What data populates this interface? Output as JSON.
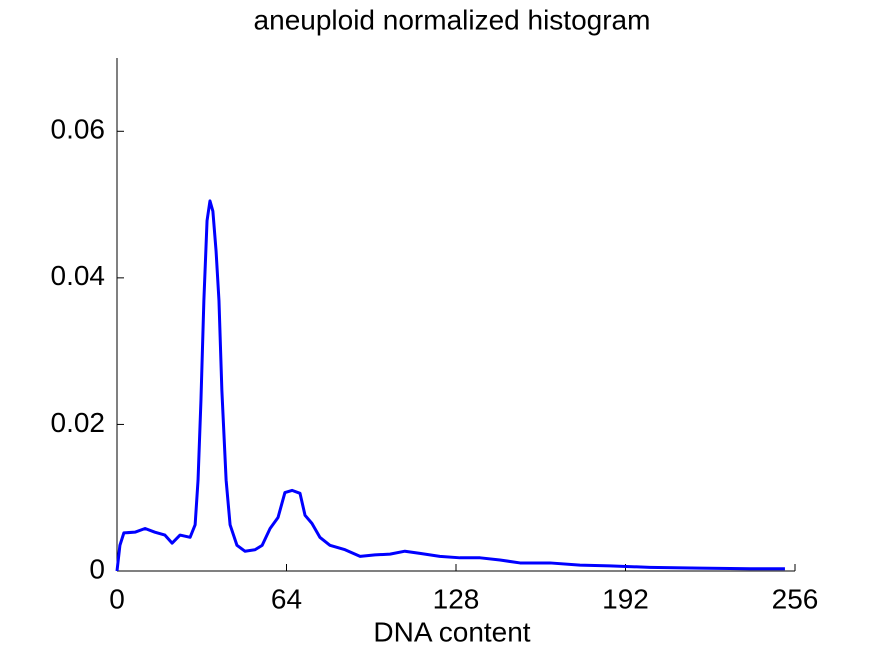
{
  "chart_data": {
    "type": "line",
    "title": "aneuploid normalized histogram",
    "x_label": "DNA content",
    "x": [
      0,
      1.1,
      2.6,
      6.8,
      10.6,
      14.3,
      18.1,
      20.8,
      23.8,
      27.6,
      29.5,
      30.6,
      31.7,
      32.8,
      34.0,
      35.1,
      36.2,
      37.4,
      38.5,
      39.6,
      41.2,
      42.7,
      45.3,
      48.3,
      52.1,
      54.8,
      57.8,
      60.8,
      63.4,
      66.1,
      69.1,
      71.0,
      73.6,
      76.6,
      80.4,
      86.1,
      91.8,
      97.4,
      103.1,
      108.7,
      114.4,
      121.9,
      129.5,
      137.1,
      144.6,
      152.2,
      163.5,
      174.8,
      186.1,
      201.2,
      220.1,
      239,
      252.2
    ],
    "series": [
      {
        "name": "aneuploid",
        "color": "#0000ff",
        "values": [
          0,
          0.0035,
          0.0052,
          0.0053,
          0.0058,
          0.0053,
          0.0049,
          0.0038,
          0.0049,
          0.0046,
          0.0063,
          0.0124,
          0.0233,
          0.0369,
          0.0478,
          0.0505,
          0.0491,
          0.0437,
          0.0369,
          0.0246,
          0.0124,
          0.0063,
          0.0035,
          0.0027,
          0.0029,
          0.0035,
          0.0058,
          0.0073,
          0.0107,
          0.011,
          0.0106,
          0.0076,
          0.0065,
          0.0046,
          0.0035,
          0.0029,
          0.002,
          0.0022,
          0.0023,
          0.0027,
          0.0024,
          0.002,
          0.0018,
          0.0018,
          0.0015,
          0.0011,
          0.0011,
          0.0008,
          0.0007,
          0.0005,
          0.0004,
          0.0003,
          0.0003
        ]
      }
    ],
    "xlim": [
      0,
      256
    ],
    "xticks": [
      0,
      64,
      128,
      192,
      256
    ],
    "ylim": [
      0,
      0.07
    ],
    "yticks": [
      0,
      0.02,
      0.04,
      0.06
    ]
  }
}
